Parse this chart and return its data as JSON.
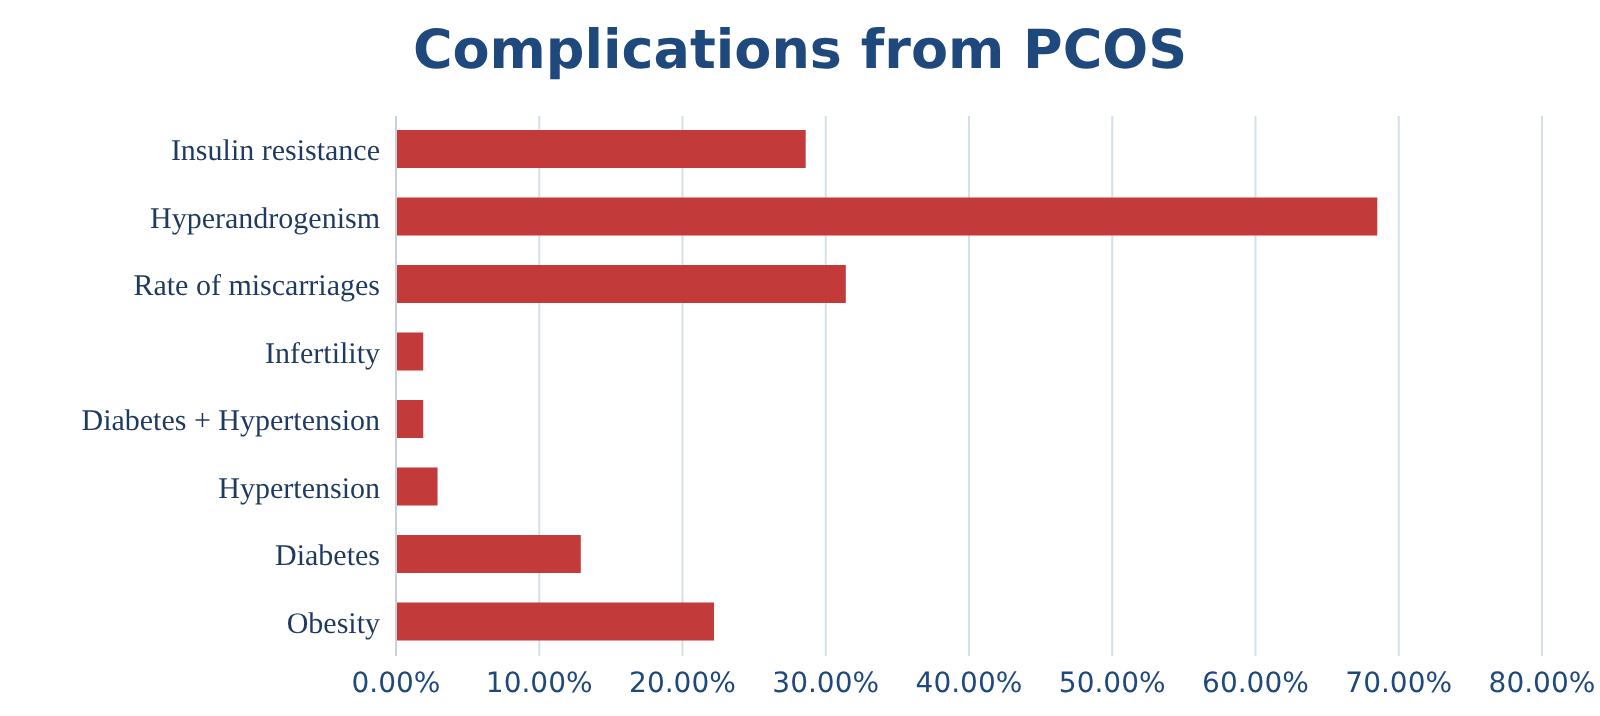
{
  "chart_data": {
    "type": "bar",
    "orientation": "horizontal",
    "title": "Complications from PCOS",
    "categories": [
      "Insulin resistance",
      "Hyperandrogenism",
      "Rate of miscarriages",
      "Infertility",
      "Diabetes + Hypertension",
      "Hypertension",
      "Diabetes",
      "Obesity"
    ],
    "values": [
      28.6,
      68.5,
      31.4,
      1.9,
      1.9,
      2.9,
      12.9,
      22.2
    ],
    "color": "#c23b3a",
    "xlim": [
      0,
      80
    ],
    "xticks": [
      {
        "value": 0,
        "label": "0.00%"
      },
      {
        "value": 10,
        "label": "10.00%"
      },
      {
        "value": 20,
        "label": "20.00%"
      },
      {
        "value": 30,
        "label": "30.00%"
      },
      {
        "value": 40,
        "label": "40.00%"
      },
      {
        "value": 50,
        "label": "50.00%"
      },
      {
        "value": 60,
        "label": "60.00%"
      },
      {
        "value": 70,
        "label": "70.00%"
      },
      {
        "value": 80,
        "label": "80.00%"
      }
    ],
    "grid": "x"
  }
}
